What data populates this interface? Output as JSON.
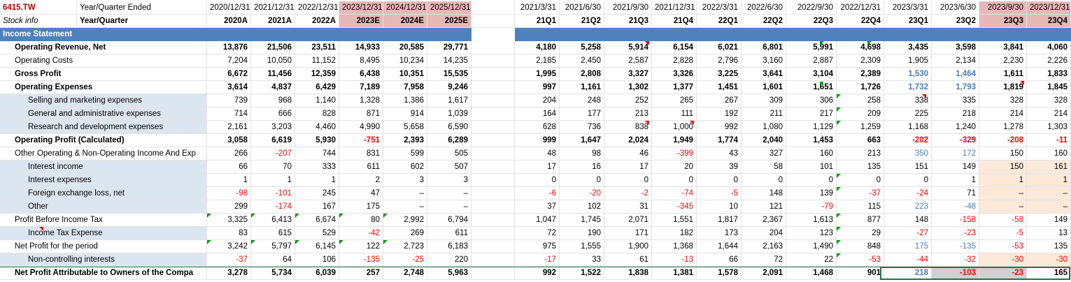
{
  "header": {
    "ticker": "6415.TW",
    "year_label": "Year/Quarter Ended",
    "stock_info": "Stock info",
    "yq_label": "Year/Quarter",
    "annual_dates": [
      "2020/12/31",
      "2021/12/31",
      "2022/12/31",
      "2023/12/31",
      "2024/12/31",
      "2025/12/31"
    ],
    "annual_codes": [
      "2020A",
      "2021A",
      "2022A",
      "2023E",
      "2024E",
      "2025E"
    ],
    "quarter_dates": [
      "2021/3/31",
      "2021/6/30",
      "2021/9/30",
      "2021/12/31",
      "2022/3/31",
      "2022/6/30",
      "2022/9/30",
      "2022/12/31",
      "2023/3/31",
      "2023/6/30",
      "2023/9/30",
      "2023/12/31"
    ],
    "quarter_codes": [
      "21Q1",
      "21Q2",
      "21Q3",
      "21Q4",
      "22Q1",
      "22Q2",
      "22Q3",
      "22Q4",
      "23Q1",
      "23Q2",
      "23Q3",
      "23Q4"
    ]
  },
  "section_title": "Income Statement",
  "colors": {
    "section_bar": "#4f81bd",
    "estimate_header": "#e6b8b7",
    "negative": "#ff0000",
    "highlight_blue": "#4a7ebb"
  },
  "rows": [
    {
      "label": "Operating Revenue, Net",
      "bold": true,
      "indent": 1,
      "annual": [
        "13,876",
        "21,506",
        "23,511",
        "14,933",
        "20,585",
        "29,771"
      ],
      "quarters": [
        "4,180",
        "5,258",
        "5,914",
        "6,154",
        "6,021",
        "6,801",
        "5,991",
        "4,698",
        "3,435",
        "3,598",
        "3,841",
        "4,060"
      ]
    },
    {
      "label": "Operating Costs",
      "bold": false,
      "indent": 1,
      "annual": [
        "7,204",
        "10,050",
        "11,152",
        "8,495",
        "10,234",
        "14,235"
      ],
      "quarters": [
        "2,185",
        "2,450",
        "2,587",
        "2,828",
        "2,796",
        "3,160",
        "2,887",
        "2,309",
        "1,905",
        "2,134",
        "2,230",
        "2,226"
      ]
    },
    {
      "label": "Gross Profit",
      "bold": true,
      "indent": 1,
      "annual": [
        "6,672",
        "11,456",
        "12,359",
        "6,438",
        "10,351",
        "15,535"
      ],
      "quarters": [
        "1,995",
        "2,808",
        "3,327",
        "3,326",
        "3,225",
        "3,641",
        "3,104",
        "2,389",
        "1,530",
        "1,464",
        "1,611",
        "1,833"
      ]
    },
    {
      "label": "Operating Expenses",
      "bold": true,
      "indent": 1,
      "annual": [
        "3,614",
        "4,837",
        "6,429",
        "7,189",
        "7,958",
        "9,246"
      ],
      "quarters": [
        "997",
        "1,161",
        "1,302",
        "1,377",
        "1,451",
        "1,601",
        "1,651",
        "1,726",
        "1,732",
        "1,793",
        "1,819",
        "1,845"
      ]
    },
    {
      "label": "Selling and marketing expenses",
      "bold": false,
      "indent": 2,
      "annual": [
        "739",
        "968",
        "1,140",
        "1,328",
        "1,386",
        "1,617"
      ],
      "quarters": [
        "204",
        "248",
        "252",
        "265",
        "267",
        "309",
        "306",
        "258",
        "338",
        "335",
        "328",
        "328"
      ]
    },
    {
      "label": "General and administrative expenses",
      "bold": false,
      "indent": 2,
      "annual": [
        "714",
        "666",
        "828",
        "871",
        "914",
        "1,039"
      ],
      "quarters": [
        "164",
        "177",
        "213",
        "111",
        "192",
        "211",
        "217",
        "209",
        "225",
        "218",
        "214",
        "214"
      ]
    },
    {
      "label": "Research and development expenses",
      "bold": false,
      "indent": 2,
      "annual": [
        "2,161",
        "3,203",
        "4,460",
        "4,990",
        "5,658",
        "6,590"
      ],
      "quarters": [
        "628",
        "736",
        "838",
        "1,000",
        "992",
        "1,080",
        "1,129",
        "1,259",
        "1,168",
        "1,240",
        "1,278",
        "1,303"
      ]
    },
    {
      "label": "Operating Profit (Calculated)",
      "bold": true,
      "indent": 1,
      "annual": [
        "3,058",
        "6,619",
        "5,930",
        "-751",
        "2,393",
        "6,289"
      ],
      "quarters": [
        "999",
        "1,647",
        "2,024",
        "1,949",
        "1,774",
        "2,040",
        "1,453",
        "663",
        "-202",
        "-329",
        "-208",
        "-11"
      ]
    },
    {
      "label": "Other Operating & Non-Operating Income And Exp",
      "bold": false,
      "indent": 1,
      "annual": [
        "266",
        "-207",
        "744",
        "831",
        "599",
        "505"
      ],
      "quarters": [
        "48",
        "98",
        "46",
        "-399",
        "43",
        "327",
        "160",
        "213",
        "350",
        "172",
        "150",
        "160"
      ]
    },
    {
      "label": "Interest income",
      "bold": false,
      "indent": 2,
      "annual": [
        "66",
        "70",
        "333",
        "611",
        "602",
        "507"
      ],
      "quarters": [
        "17",
        "16",
        "17",
        "20",
        "39",
        "58",
        "101",
        "135",
        "151",
        "149",
        "150",
        "161"
      ]
    },
    {
      "label": "Interest expenses",
      "bold": false,
      "indent": 2,
      "annual": [
        "1",
        "1",
        "1",
        "2",
        "3",
        "3"
      ],
      "quarters": [
        "0",
        "0",
        "0",
        "0",
        "0",
        "0",
        "0",
        "0",
        "0",
        "1",
        "1",
        "1"
      ]
    },
    {
      "label": "Foreign exchange loss, net",
      "bold": false,
      "indent": 2,
      "annual": [
        "-98",
        "-101",
        "245",
        "47",
        "–",
        "–"
      ],
      "quarters": [
        "-6",
        "-20",
        "-2",
        "-74",
        "-5",
        "148",
        "139",
        "-37",
        "-24",
        "71",
        "–",
        "–"
      ]
    },
    {
      "label": "Other",
      "bold": false,
      "indent": 2,
      "annual": [
        "299",
        "-174",
        "167",
        "175",
        "–",
        "–"
      ],
      "quarters": [
        "37",
        "102",
        "31",
        "-345",
        "10",
        "121",
        "-79",
        "115",
        "223",
        "-48",
        "–",
        "–"
      ]
    },
    {
      "label": "Profit Before Income Tax",
      "bold": false,
      "indent": 1,
      "annual": [
        "3,325",
        "6,413",
        "6,674",
        "80",
        "2,992",
        "6,794"
      ],
      "quarters": [
        "1,047",
        "1,745",
        "2,071",
        "1,551",
        "1,817",
        "2,367",
        "1,613",
        "877",
        "148",
        "-158",
        "-58",
        "149"
      ]
    },
    {
      "label": "Income Tax Expense",
      "bold": false,
      "indent": 2,
      "annual": [
        "83",
        "615",
        "529",
        "-42",
        "269",
        "611"
      ],
      "quarters": [
        "72",
        "190",
        "171",
        "182",
        "173",
        "204",
        "123",
        "29",
        "-27",
        "-23",
        "-5",
        "13"
      ]
    },
    {
      "label": "Net Profit for the period",
      "bold": false,
      "indent": 1,
      "annual": [
        "3,242",
        "5,797",
        "6,145",
        "122",
        "2,723",
        "6,183"
      ],
      "quarters": [
        "975",
        "1,555",
        "1,900",
        "1,368",
        "1,644",
        "2,163",
        "1,490",
        "848",
        "175",
        "-135",
        "-53",
        "135"
      ]
    },
    {
      "label": "Non-controlling interests",
      "bold": false,
      "indent": 2,
      "annual": [
        "-37",
        "64",
        "106",
        "-135",
        "-25",
        "220"
      ],
      "quarters": [
        "-17",
        "33",
        "61",
        "-13",
        "66",
        "72",
        "22",
        "-53",
        "-44",
        "-32",
        "-30",
        "-30"
      ]
    },
    {
      "label": "Net Profit Attributable to Owners of the Compa",
      "bold": true,
      "indent": 1,
      "annual": [
        "3,278",
        "5,734",
        "6,039",
        "257",
        "2,748",
        "5,963"
      ],
      "quarters": [
        "992",
        "1,522",
        "1,838",
        "1,381",
        "1,578",
        "2,091",
        "1,468",
        "901",
        "218",
        "-103",
        "-23",
        "165"
      ]
    }
  ]
}
